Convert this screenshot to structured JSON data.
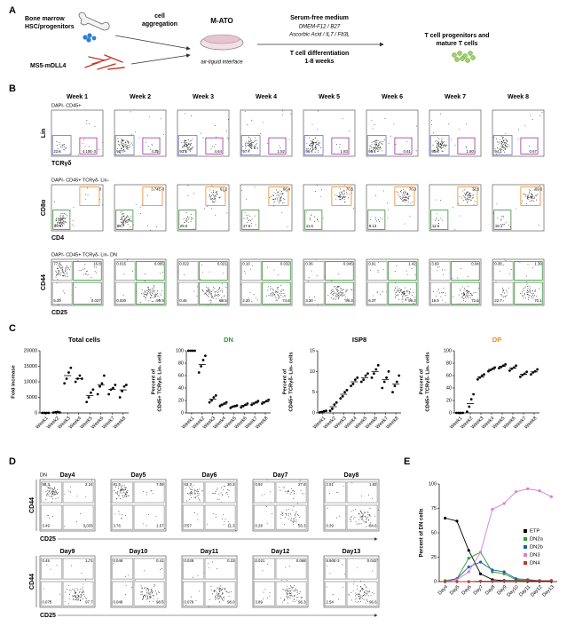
{
  "panel_labels": [
    "A",
    "B",
    "C",
    "D",
    "E"
  ],
  "schematic": {
    "source": [
      "Bone marrow",
      "HSC/progenitors"
    ],
    "step": [
      "cell",
      "aggregation"
    ],
    "stroma": "MS5-mDLL4",
    "culture": "M-ATO",
    "interface": "air-liquid interface",
    "medium": "Serum-free medium",
    "medium_components": [
      "DMEM-F12 / B27",
      "Ascorbic Acid / IL7 / Flt3L"
    ],
    "differentiation": [
      "T cell differentiation",
      "1-8 weeks"
    ],
    "product": [
      "T cell progenitors and",
      "mature T cells"
    ]
  },
  "flow_weeks": {
    "weeks": [
      "Week 1",
      "Week 2",
      "Week 3",
      "Week 4",
      "Week 5",
      "Week 6",
      "Week 7",
      "Week 8"
    ],
    "rows": [
      {
        "gate": "DAPI- CD45+",
        "y_label": "Lin",
        "x_label": "TCRγδ",
        "plots": [
          [
            "22.6",
            "4.10E-3"
          ],
          [
            "92.7",
            "4.35"
          ],
          [
            "93.1",
            "4.64"
          ],
          [
            "97.7",
            "1.52"
          ],
          [
            "96.7",
            "1.83"
          ],
          [
            "95.4",
            "0.61"
          ],
          [
            "95.8",
            "1.80"
          ],
          [
            "94.1",
            "0.67"
          ]
        ]
      },
      {
        "gate": "DAPI- CD45+ TCRγδ- Lin-",
        "y_label": "CD8α",
        "x_label": "CD4",
        "plots": [
          [
            "0",
            "99.9"
          ],
          [
            "3.74E-3",
            "89.7"
          ],
          [
            "61.2",
            "25.0"
          ],
          [
            "66.4",
            "17.6"
          ],
          [
            "70.5",
            "11.6"
          ],
          [
            "76.3",
            "8.13"
          ],
          [
            "72.5",
            "12.6"
          ],
          [
            "69.6",
            "15.1"
          ]
        ]
      },
      {
        "gate": "DAPI- CD45+ TCRγδ- Lin- DN",
        "y_label": "CD44",
        "x_label": "CD25",
        "plots": [
          [
            "77.6",
            "16.8",
            "5.20",
            "0.027"
          ],
          [
            "0.015",
            "0.065",
            "0.030",
            "99.9"
          ],
          [
            "0.022",
            "0.021",
            "0.46",
            "99.5"
          ],
          [
            "0.10",
            "0.032",
            "2.20",
            "74.8"
          ],
          [
            "0.36",
            "0.045",
            "3.30",
            "99.3"
          ],
          [
            "0.91",
            "1.42",
            "6.37",
            "99.3"
          ],
          [
            "3.69",
            "0.94",
            "16.9",
            "72.6"
          ],
          [
            "0.38",
            "1.39",
            "22.7",
            "70.1"
          ]
        ]
      }
    ]
  },
  "flow_days": {
    "gate": "DN",
    "y_label": "CD44",
    "x_label": "CD25",
    "days": [
      "Day4",
      "Day5",
      "Day6",
      "Day7",
      "Day8",
      "Day9",
      "Day10",
      "Day11",
      "Day12",
      "Day13"
    ],
    "plots": [
      [
        "88.3",
        "2.24",
        "3.49",
        "0.033"
      ],
      [
        "81.5",
        "7.09",
        "3.76",
        "1.57"
      ],
      [
        "63.3",
        "30.3",
        "0.57",
        "11.3"
      ],
      [
        "0.92",
        "27.8",
        "0.28",
        "55.3"
      ],
      [
        "2.51",
        "1.82",
        "0.39",
        "84.6"
      ],
      [
        "0.45",
        "1.71",
        "0.075",
        "97.7"
      ],
      [
        "0.049",
        "0.41",
        "0.048",
        "98.6"
      ],
      [
        "0.028",
        "0.23",
        "0.079",
        "98.0"
      ],
      [
        "0.021",
        "0.068",
        "3.89",
        "96.3"
      ],
      [
        "8.90E-3",
        "0.042",
        "2.54",
        "96.6"
      ]
    ]
  },
  "chart_data": [
    {
      "type": "dot",
      "title": "Total cells",
      "title_color": "#000000",
      "ylabel": [
        "Fold increase"
      ],
      "categories": [
        "Week1",
        "Week2",
        "Week3",
        "Week4",
        "Week5",
        "Week6",
        "Week7",
        "Week8"
      ],
      "points": [
        [
          0,
          0,
          0,
          0
        ],
        [
          100,
          200,
          300,
          150
        ],
        [
          9500,
          11000,
          13000,
          14500
        ],
        [
          10000,
          11000,
          12000,
          11000
        ],
        [
          3500,
          5000,
          6500,
          7500
        ],
        [
          6000,
          8500,
          9500,
          12000
        ],
        [
          6000,
          7500,
          8000,
          9000
        ],
        [
          5000,
          7000,
          8500,
          9000
        ]
      ],
      "values": [
        0,
        190,
        12000,
        11000,
        5600,
        9000,
        7600,
        7400
      ],
      "ylim": [
        0,
        20000
      ],
      "yticks": [
        0,
        5000,
        10000,
        15000,
        20000
      ]
    },
    {
      "type": "dot",
      "title": "DN",
      "title_color": "#2e9a2e",
      "ylabel": [
        "Percent of",
        "CD45+ TCRγδ- Lin- cells"
      ],
      "categories": [
        "Week1",
        "Week2",
        "Week3",
        "Week4",
        "Week5",
        "Week6",
        "Week7",
        "Week8"
      ],
      "points": [
        [
          100,
          100,
          100,
          100
        ],
        [
          65,
          75,
          85,
          92
        ],
        [
          17,
          20,
          25,
          28
        ],
        [
          11,
          13,
          15,
          17
        ],
        [
          8,
          10,
          11,
          12
        ],
        [
          9,
          11,
          13,
          15
        ],
        [
          13,
          15,
          17,
          19
        ],
        [
          15,
          17,
          19,
          21
        ]
      ],
      "values": [
        100,
        78,
        22,
        14,
        10,
        12,
        16,
        18
      ],
      "ylim": [
        0,
        100
      ],
      "yticks": [
        0,
        20,
        40,
        60,
        80,
        100
      ]
    },
    {
      "type": "dot",
      "title": "ISP8",
      "title_color": "#000000",
      "ylabel": [
        "Percent of",
        "CD45+ TCRγδ- Lin- cells"
      ],
      "categories": [
        "Week1",
        "Week2",
        "Week3",
        "Week4",
        "Week5",
        "Week6",
        "Week7",
        "Week8"
      ],
      "points": [
        [
          0.1,
          0.2,
          0.4,
          0.5
        ],
        [
          0.5,
          1,
          2,
          2.5
        ],
        [
          3.5,
          4,
          5,
          5.5
        ],
        [
          6.5,
          7,
          8,
          8.5
        ],
        [
          7.5,
          8,
          9,
          9.5
        ],
        [
          8.5,
          9.5,
          10.5,
          11.5
        ],
        [
          6,
          7.5,
          8.5,
          10
        ],
        [
          5,
          6.5,
          7.5,
          9
        ]
      ],
      "values": [
        0.3,
        1.5,
        4.5,
        7.5,
        8.5,
        10,
        8,
        7
      ],
      "ylim": [
        0,
        15
      ],
      "yticks": [
        0,
        5,
        10,
        15
      ]
    },
    {
      "type": "dot",
      "title": "DP",
      "title_color": "#f08a1c",
      "ylabel": [
        "Percent of",
        "CD45+ TCRγδ- Lin- cells"
      ],
      "categories": [
        "Week1",
        "Week2",
        "Week3",
        "Week4",
        "Week5",
        "Week6",
        "Week7",
        "Week8"
      ],
      "points": [
        [
          0,
          0,
          0,
          0
        ],
        [
          2,
          10,
          22,
          30
        ],
        [
          54,
          57,
          60,
          62
        ],
        [
          67,
          69,
          71,
          73
        ],
        [
          72,
          74,
          76,
          78
        ],
        [
          68,
          71,
          73,
          76
        ],
        [
          58,
          61,
          63,
          66
        ],
        [
          62,
          65,
          67,
          70
        ]
      ],
      "values": [
        0,
        15,
        58,
        70,
        75,
        72,
        62,
        66
      ],
      "ylim": [
        0,
        100
      ],
      "yticks": [
        0,
        20,
        40,
        60,
        80,
        100
      ]
    },
    {
      "type": "line",
      "ylabel": "Percent of DN cells",
      "categories": [
        "Day4",
        "Day5",
        "Day6",
        "Day7",
        "Day8",
        "Day9",
        "Day10",
        "Day11",
        "Day12",
        "Day13"
      ],
      "series": [
        {
          "name": "ETP",
          "color": "#000000",
          "values": [
            65,
            62,
            32,
            8,
            2,
            1,
            1,
            0.5,
            0.5,
            0.3
          ]
        },
        {
          "name": "DN2a",
          "color": "#2ca02c",
          "values": [
            1,
            3,
            24,
            30,
            10,
            8,
            2,
            1,
            1,
            1
          ]
        },
        {
          "name": "DN2b",
          "color": "#1f5fa8",
          "values": [
            0,
            3,
            15,
            20,
            12,
            10,
            3,
            2,
            1,
            1
          ]
        },
        {
          "name": "DN3",
          "color": "#d67fd6",
          "values": [
            0,
            2,
            10,
            30,
            74,
            80,
            92,
            95,
            93,
            87
          ]
        },
        {
          "name": "DN4",
          "color": "#c0392b",
          "values": [
            0,
            0,
            0,
            0.5,
            0.5,
            0.5,
            0.5,
            1,
            1,
            1
          ]
        }
      ],
      "ylim": [
        0,
        100
      ],
      "yticks": [
        0,
        25,
        50,
        75,
        100
      ]
    }
  ]
}
